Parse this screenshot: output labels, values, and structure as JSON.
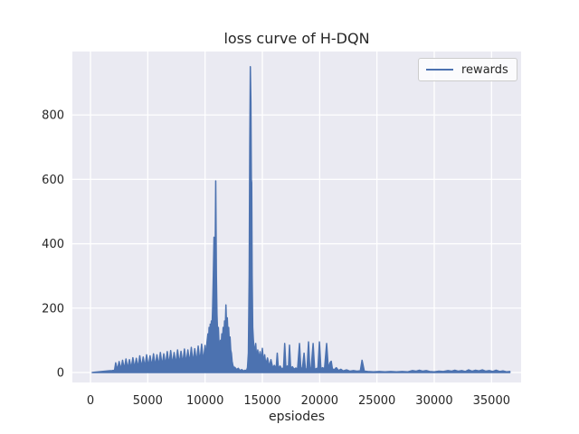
{
  "chart": {
    "title": "loss curve of H-DQN",
    "xlabel": "epsiodes",
    "legend_label": "rewards",
    "colors": {
      "line": "#4c72b0",
      "axes_bg": "#eaeaf2",
      "grid": "#ffffff",
      "text": "#262626",
      "legend_border": "#cccccc",
      "figure_bg": "#ffffff"
    }
  },
  "chart_data": {
    "type": "line",
    "title": "loss curve of H-DQN",
    "xlabel": "epsiodes",
    "ylabel": "",
    "grid": true,
    "legend_position": "upper right",
    "series_name": "rewards",
    "xlim": [
      -1580,
      37580
    ],
    "ylim": [
      -31,
      997
    ],
    "xticks": [
      0,
      5000,
      10000,
      15000,
      20000,
      25000,
      30000,
      35000
    ],
    "yticks": [
      0,
      200,
      400,
      600,
      800
    ],
    "points": [
      [
        150,
        0
      ],
      [
        400,
        1
      ],
      [
        700,
        2
      ],
      [
        1000,
        3
      ],
      [
        1300,
        4
      ],
      [
        1600,
        5
      ],
      [
        1900,
        6
      ],
      [
        2100,
        7
      ],
      [
        2200,
        30
      ],
      [
        2350,
        8
      ],
      [
        2500,
        34
      ],
      [
        2650,
        9
      ],
      [
        2800,
        38
      ],
      [
        2950,
        10
      ],
      [
        3100,
        42
      ],
      [
        3250,
        11
      ],
      [
        3400,
        40
      ],
      [
        3550,
        12
      ],
      [
        3700,
        46
      ],
      [
        3850,
        13
      ],
      [
        4000,
        44
      ],
      [
        4150,
        14
      ],
      [
        4300,
        52
      ],
      [
        4450,
        15
      ],
      [
        4600,
        48
      ],
      [
        4750,
        16
      ],
      [
        4900,
        55
      ],
      [
        5050,
        17
      ],
      [
        5200,
        52
      ],
      [
        5350,
        18
      ],
      [
        5500,
        58
      ],
      [
        5650,
        19
      ],
      [
        5800,
        55
      ],
      [
        5950,
        20
      ],
      [
        6100,
        62
      ],
      [
        6250,
        21
      ],
      [
        6400,
        58
      ],
      [
        6550,
        22
      ],
      [
        6700,
        65
      ],
      [
        6850,
        23
      ],
      [
        7000,
        68
      ],
      [
        7150,
        24
      ],
      [
        7300,
        62
      ],
      [
        7450,
        25
      ],
      [
        7600,
        70
      ],
      [
        7750,
        26
      ],
      [
        7900,
        66
      ],
      [
        8050,
        27
      ],
      [
        8200,
        73
      ],
      [
        8350,
        28
      ],
      [
        8500,
        70
      ],
      [
        8650,
        29
      ],
      [
        8800,
        78
      ],
      [
        8950,
        30
      ],
      [
        9100,
        74
      ],
      [
        9250,
        31
      ],
      [
        9400,
        82
      ],
      [
        9550,
        32
      ],
      [
        9700,
        88
      ],
      [
        9850,
        33
      ],
      [
        10000,
        84
      ],
      [
        10100,
        36
      ],
      [
        10160,
        92
      ],
      [
        10250,
        120
      ],
      [
        10300,
        90
      ],
      [
        10350,
        140
      ],
      [
        10400,
        100
      ],
      [
        10450,
        150
      ],
      [
        10500,
        110
      ],
      [
        10550,
        160
      ],
      [
        10600,
        130
      ],
      [
        10660,
        200
      ],
      [
        10720,
        300
      ],
      [
        10780,
        420
      ],
      [
        10830,
        310
      ],
      [
        10880,
        360
      ],
      [
        10930,
        595
      ],
      [
        10990,
        300
      ],
      [
        11040,
        180
      ],
      [
        11100,
        120
      ],
      [
        11160,
        140
      ],
      [
        11220,
        90
      ],
      [
        11280,
        70
      ],
      [
        11340,
        100
      ],
      [
        11400,
        80
      ],
      [
        11460,
        120
      ],
      [
        11520,
        100
      ],
      [
        11580,
        140
      ],
      [
        11640,
        110
      ],
      [
        11700,
        160
      ],
      [
        11760,
        130
      ],
      [
        11820,
        210
      ],
      [
        11880,
        140
      ],
      [
        11940,
        170
      ],
      [
        12000,
        120
      ],
      [
        12060,
        140
      ],
      [
        12120,
        90
      ],
      [
        12180,
        110
      ],
      [
        12240,
        70
      ],
      [
        12300,
        60
      ],
      [
        12360,
        35
      ],
      [
        12430,
        22
      ],
      [
        12500,
        16
      ],
      [
        12600,
        16
      ],
      [
        12750,
        9
      ],
      [
        12900,
        13
      ],
      [
        13050,
        6
      ],
      [
        13200,
        9
      ],
      [
        13350,
        5
      ],
      [
        13500,
        7
      ],
      [
        13620,
        6
      ],
      [
        13700,
        15
      ],
      [
        13780,
        60
      ],
      [
        13850,
        300
      ],
      [
        13900,
        700
      ],
      [
        13950,
        950
      ],
      [
        14000,
        840
      ],
      [
        14040,
        600
      ],
      [
        14070,
        590
      ],
      [
        14110,
        300
      ],
      [
        14160,
        140
      ],
      [
        14210,
        105
      ],
      [
        14260,
        80
      ],
      [
        14310,
        55
      ],
      [
        14360,
        75
      ],
      [
        14420,
        90
      ],
      [
        14500,
        45
      ],
      [
        14600,
        70
      ],
      [
        14700,
        40
      ],
      [
        14800,
        65
      ],
      [
        14900,
        35
      ],
      [
        15000,
        75
      ],
      [
        15100,
        30
      ],
      [
        15200,
        55
      ],
      [
        15300,
        25
      ],
      [
        15450,
        45
      ],
      [
        15600,
        18
      ],
      [
        15750,
        40
      ],
      [
        15900,
        15
      ],
      [
        16050,
        22
      ],
      [
        16200,
        12
      ],
      [
        16300,
        60
      ],
      [
        16400,
        12
      ],
      [
        16550,
        20
      ],
      [
        16700,
        10
      ],
      [
        16850,
        15
      ],
      [
        16950,
        90
      ],
      [
        17060,
        12
      ],
      [
        17170,
        20
      ],
      [
        17270,
        10
      ],
      [
        17370,
        85
      ],
      [
        17470,
        12
      ],
      [
        17620,
        18
      ],
      [
        17770,
        10
      ],
      [
        17920,
        14
      ],
      [
        18070,
        10
      ],
      [
        18240,
        90
      ],
      [
        18360,
        12
      ],
      [
        18500,
        15
      ],
      [
        18640,
        60
      ],
      [
        18760,
        10
      ],
      [
        18900,
        12
      ],
      [
        19030,
        95
      ],
      [
        19140,
        12
      ],
      [
        19260,
        15
      ],
      [
        19430,
        90
      ],
      [
        19560,
        10
      ],
      [
        19700,
        12
      ],
      [
        19850,
        14
      ],
      [
        19980,
        95
      ],
      [
        20110,
        12
      ],
      [
        20260,
        15
      ],
      [
        20420,
        10
      ],
      [
        20610,
        90
      ],
      [
        20760,
        10
      ],
      [
        20900,
        30
      ],
      [
        21010,
        35
      ],
      [
        21110,
        12
      ],
      [
        21250,
        8
      ],
      [
        21450,
        15
      ],
      [
        21650,
        6
      ],
      [
        21850,
        10
      ],
      [
        22050,
        5
      ],
      [
        22350,
        8
      ],
      [
        22650,
        4
      ],
      [
        22950,
        6
      ],
      [
        23250,
        4
      ],
      [
        23550,
        5
      ],
      [
        23700,
        38
      ],
      [
        23900,
        4
      ],
      [
        24200,
        3
      ],
      [
        24700,
        2
      ],
      [
        25200,
        3
      ],
      [
        25700,
        2
      ],
      [
        26200,
        3
      ],
      [
        26700,
        2
      ],
      [
        27200,
        3
      ],
      [
        27700,
        2
      ],
      [
        28100,
        6
      ],
      [
        28400,
        4
      ],
      [
        28700,
        7
      ],
      [
        29000,
        4
      ],
      [
        29300,
        6
      ],
      [
        29600,
        3
      ],
      [
        30000,
        2
      ],
      [
        30400,
        4
      ],
      [
        30800,
        3
      ],
      [
        31200,
        6
      ],
      [
        31500,
        4
      ],
      [
        31800,
        7
      ],
      [
        32100,
        4
      ],
      [
        32400,
        6
      ],
      [
        32700,
        3
      ],
      [
        33000,
        8
      ],
      [
        33300,
        4
      ],
      [
        33600,
        7
      ],
      [
        33900,
        5
      ],
      [
        34200,
        8
      ],
      [
        34500,
        4
      ],
      [
        34800,
        6
      ],
      [
        35100,
        3
      ],
      [
        35400,
        7
      ],
      [
        35700,
        3
      ],
      [
        36000,
        5
      ],
      [
        36300,
        2
      ],
      [
        36600,
        3
      ]
    ]
  }
}
